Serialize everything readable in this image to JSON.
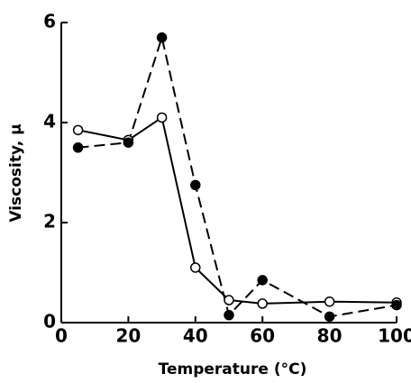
{
  "chart_data": {
    "type": "line",
    "x_label": "Temperature (°C)",
    "y_label": "Viscosity, μ",
    "x": [
      5,
      20,
      30,
      40,
      50,
      60,
      80,
      100
    ],
    "series": [
      {
        "color": "#000000",
        "marker": "open",
        "dash": false,
        "values": [
          3.85,
          3.65,
          4.1,
          1.1,
          0.45,
          0.38,
          0.42,
          0.4
        ]
      },
      {
        "color": "#000000",
        "marker": "filled",
        "dash": true,
        "values": [
          3.5,
          3.6,
          5.7,
          2.75,
          0.15,
          0.85,
          0.12,
          0.35
        ]
      }
    ],
    "xlim": [
      0,
      100
    ],
    "xticks": [
      0,
      20,
      40,
      60,
      80,
      100
    ],
    "ylim": [
      0,
      6
    ],
    "yticks": [
      0,
      2,
      4,
      6
    ]
  }
}
